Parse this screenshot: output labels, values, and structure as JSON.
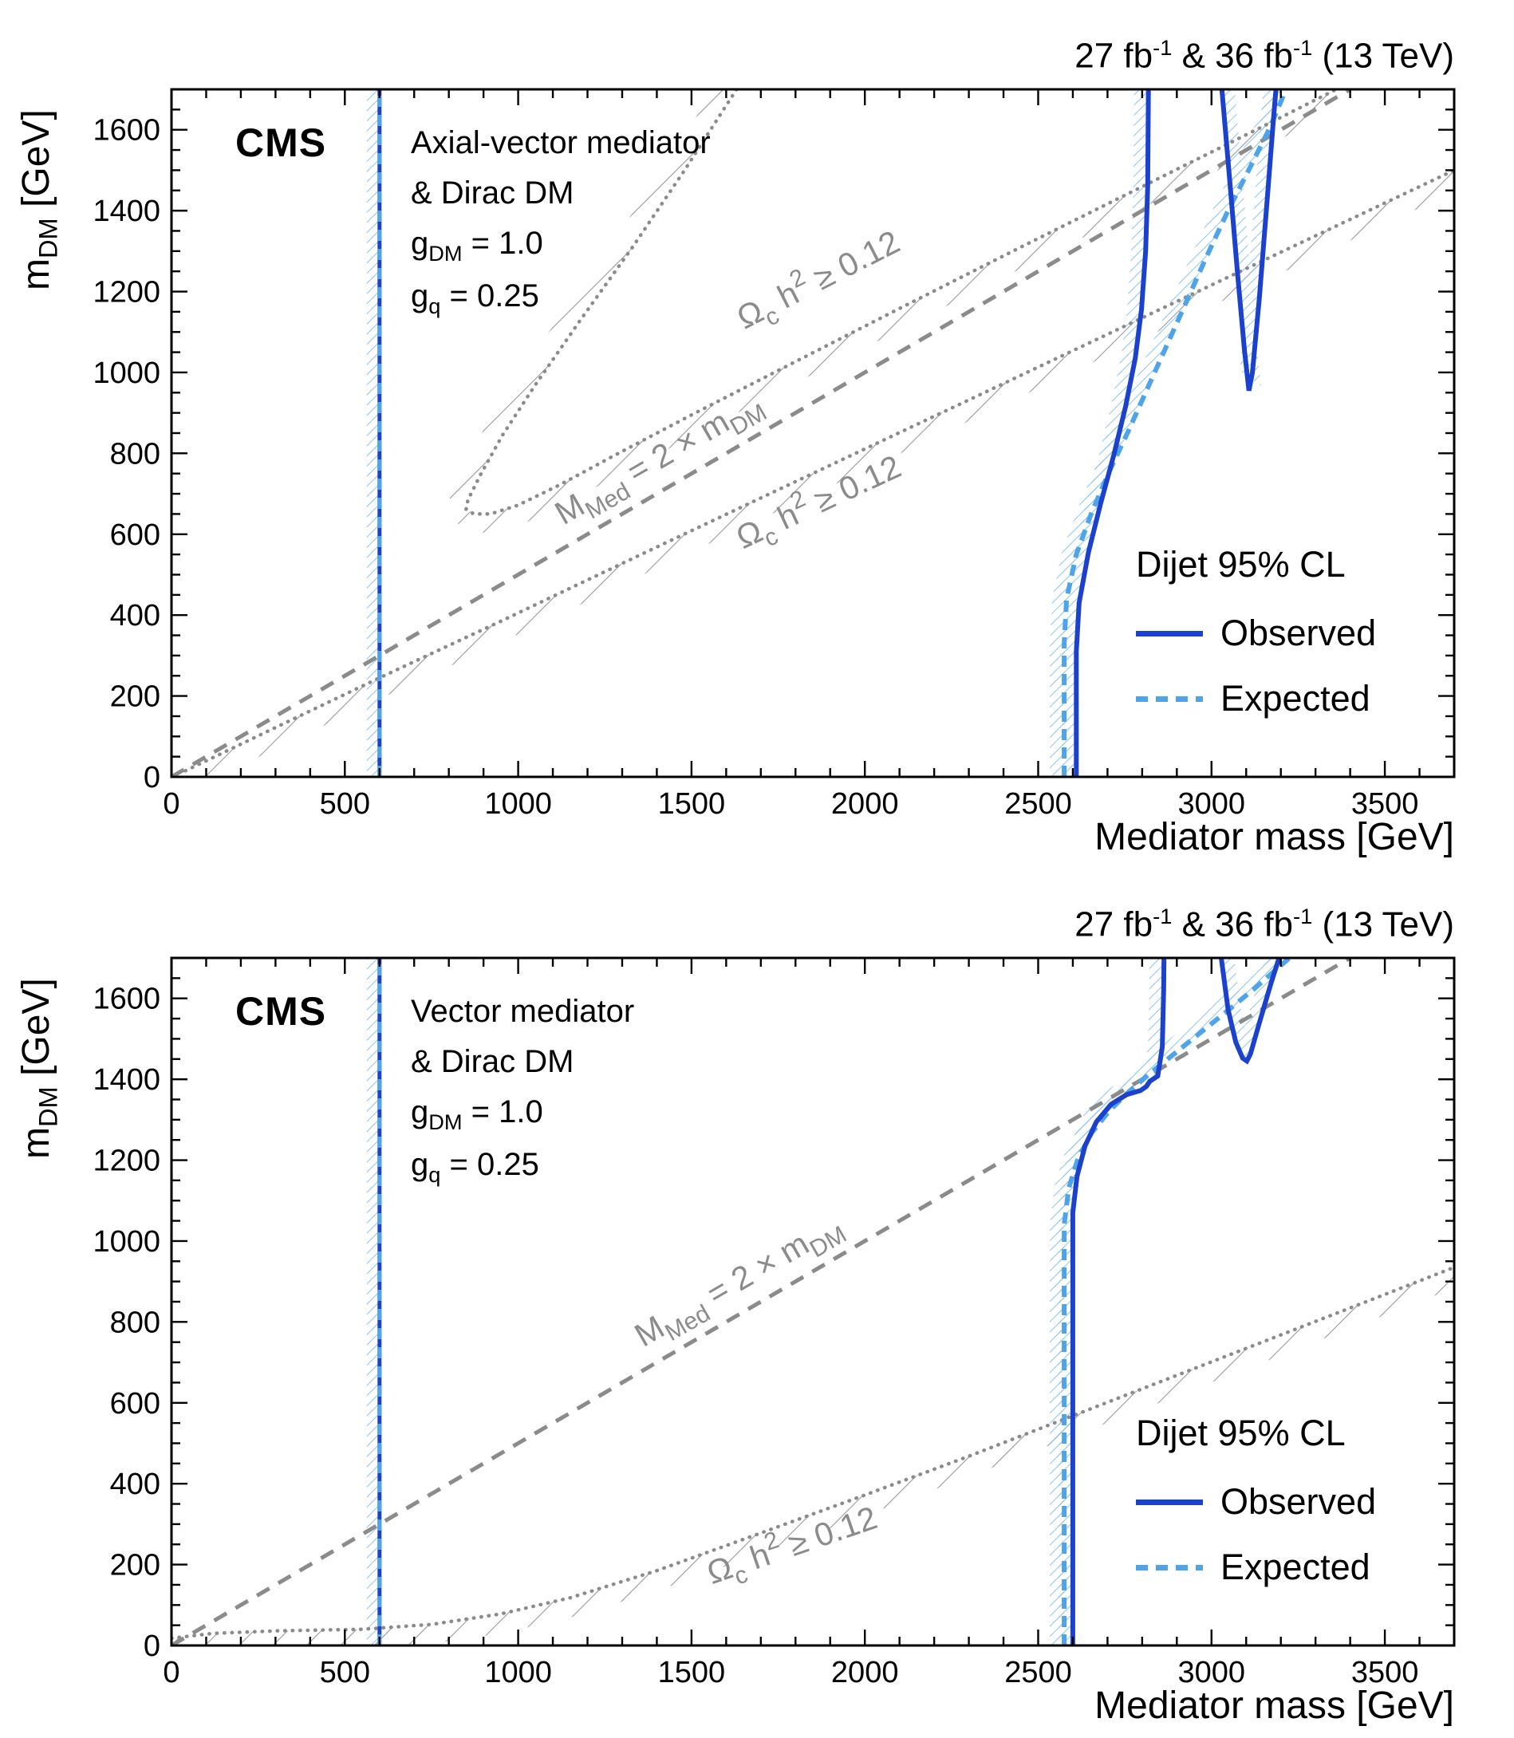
{
  "common": {
    "cms_label": "CMS",
    "lumi_label": [
      {
        "t": "27 fb"
      },
      {
        "t": "-1",
        "s": "sup"
      },
      {
        "t": " & 36 fb"
      },
      {
        "t": "-1",
        "s": "sup"
      },
      {
        "t": " (13 TeV)"
      }
    ],
    "colors": {
      "observed": "#1c41cb",
      "expected": "#4fa3e8",
      "hatch_blue": "#7cc0ef",
      "gray": "#8b8b8b",
      "hatch_gray": "#9a9a9a",
      "frame": "#000000"
    }
  },
  "chart_data": [
    {
      "type": "line",
      "title": "Dijet 95% CL exclusion, axial-vector mediator",
      "model_lines": [
        "Axial-vector mediator",
        "& Dirac DM"
      ],
      "couplings": [
        [
          {
            "t": "g"
          },
          {
            "t": "DM",
            "s": "sub"
          },
          {
            "t": " = 1.0"
          }
        ],
        [
          {
            "t": "g"
          },
          {
            "t": "q",
            "s": "sub"
          },
          {
            "t": " = 0.25"
          }
        ]
      ],
      "legend": {
        "title": "Dijet 95% CL",
        "entries": [
          "Observed",
          "Expected"
        ],
        "position": "right-center"
      },
      "xlabel": "Mediator mass [GeV]",
      "ylabel": "m_DM [GeV]",
      "ylabel_rich": [
        {
          "t": "m"
        },
        {
          "t": "DM",
          "s": "sub"
        },
        {
          "t": " [GeV]"
        }
      ],
      "xlim": [
        0,
        3700
      ],
      "ylim": [
        0,
        1700
      ],
      "xticks": {
        "major": 500,
        "minor": 100,
        "labels": [
          0,
          500,
          1000,
          1500,
          2000,
          2500,
          3000,
          3500
        ]
      },
      "yticks": {
        "major": 200,
        "minor": 50,
        "labels": [
          0,
          200,
          400,
          600,
          800,
          1000,
          1200,
          1400,
          1600
        ]
      },
      "grid": false,
      "series": [
        {
          "name": "mmed-equals-2mdm-line",
          "color": "#8b8b8b",
          "width": 5,
          "dash": "18 13",
          "points": [
            [
              0,
              0
            ],
            [
              3400,
              1700
            ]
          ]
        },
        {
          "name": "relic-density-contour-upper",
          "color": "#8b8b8b",
          "width": 4.5,
          "dot": true,
          "hatch": {
            "side": "right",
            "w": 24,
            "pattern": "gray"
          },
          "points": [
            [
              1630,
              1700
            ],
            [
              1480,
              1500
            ],
            [
              1330,
              1310
            ],
            [
              1180,
              1130
            ],
            [
              1050,
              970
            ],
            [
              955,
              845
            ],
            [
              890,
              745
            ],
            [
              855,
              685
            ],
            [
              850,
              662
            ],
            [
              872,
              650
            ],
            [
              920,
              650
            ],
            [
              1000,
              672
            ],
            [
              1120,
              722
            ],
            [
              1280,
              796
            ],
            [
              1500,
              895
            ],
            [
              1780,
              1018
            ],
            [
              2100,
              1158
            ],
            [
              2450,
              1310
            ],
            [
              2820,
              1468
            ],
            [
              3180,
              1622
            ],
            [
              3360,
              1700
            ]
          ]
        },
        {
          "name": "relic-density-contour-lower",
          "color": "#8b8b8b",
          "width": 4.5,
          "dot": true,
          "hatch": {
            "side": "right",
            "w": 24,
            "pattern": "gray"
          },
          "points": [
            [
              40,
              15
            ],
            [
              300,
              122
            ],
            [
              600,
              245
            ],
            [
              950,
              385
            ],
            [
              1350,
              548
            ],
            [
              1800,
              730
            ],
            [
              2300,
              932
            ],
            [
              2800,
              1135
            ],
            [
              3300,
              1338
            ],
            [
              3700,
              1500
            ]
          ]
        },
        {
          "name": "boosted-dijet-limit-observed",
          "color": "#1c41cb",
          "width": 5,
          "hatch": {
            "side": "left",
            "w": 16,
            "pattern": "blue"
          },
          "points": [
            [
              600,
              0
            ],
            [
              600,
              1700
            ]
          ]
        },
        {
          "name": "boosted-dijet-limit-expected",
          "color": "#4fa3e8",
          "width": 5,
          "dash": "14 10",
          "points": [
            [
              600,
              0
            ],
            [
              600,
              1700
            ]
          ]
        },
        {
          "name": "expected-limit",
          "color": "#4fa3e8",
          "width": 6,
          "dash": "14 9",
          "hatch": {
            "side": "left",
            "w": 18,
            "pattern": "blue"
          },
          "points": [
            [
              2575,
              0
            ],
            [
              2575,
              330
            ],
            [
              2582,
              440
            ],
            [
              2610,
              550
            ],
            [
              2655,
              655
            ],
            [
              2705,
              755
            ],
            [
              2760,
              855
            ],
            [
              2815,
              960
            ],
            [
              2870,
              1065
            ],
            [
              2925,
              1170
            ],
            [
              2985,
              1285
            ],
            [
              3045,
              1395
            ],
            [
              3110,
              1505
            ],
            [
              3170,
              1608
            ],
            [
              3215,
              1700
            ]
          ]
        },
        {
          "name": "observed-limit",
          "color": "#1c41cb",
          "width": 6,
          "hatch": {
            "side": "left",
            "w": 18,
            "pattern": "blue"
          },
          "points": [
            [
              2610,
              0
            ],
            [
              2610,
              310
            ],
            [
              2618,
              430
            ],
            [
              2645,
              555
            ],
            [
              2680,
              675
            ],
            [
              2718,
              795
            ],
            [
              2752,
              915
            ],
            [
              2780,
              1035
            ],
            [
              2798,
              1155
            ],
            [
              2810,
              1300
            ],
            [
              2816,
              1460
            ],
            [
              2818,
              1700
            ]
          ]
        },
        {
          "name": "observed-limit-notch",
          "color": "#1c41cb",
          "width": 6,
          "hatch": {
            "side": "left",
            "w": 16,
            "pattern": "blue"
          },
          "points": [
            [
              3030,
              1700
            ],
            [
              3052,
              1480
            ],
            [
              3075,
              1245
            ],
            [
              3095,
              1055
            ],
            [
              3108,
              955
            ],
            [
              3118,
              1000
            ],
            [
              3138,
              1185
            ],
            [
              3160,
              1420
            ],
            [
              3180,
              1640
            ],
            [
              3186,
              1700
            ]
          ]
        }
      ],
      "curve_labels": [
        {
          "parts": [
            {
              "t": "Ω"
            },
            {
              "t": "c",
              "s": "sub"
            },
            {
              "t": " h"
            },
            {
              "t": "2",
              "s": "sup"
            },
            {
              "t": " ≥ 0.12"
            }
          ],
          "x": 1880,
          "y": 1205,
          "rot": -27,
          "size": 41,
          "color": "#8b8b8b"
        },
        {
          "parts": [
            {
              "t": "M"
            },
            {
              "t": "Med",
              "s": "sub"
            },
            {
              "t": " = 2 × m"
            },
            {
              "t": "DM",
              "s": "sub"
            }
          ],
          "x": 1420,
          "y": 765,
          "rot": -30,
          "size": 41,
          "color": "#8b8b8b"
        },
        {
          "parts": [
            {
              "t": "Ω"
            },
            {
              "t": "c",
              "s": "sub"
            },
            {
              "t": " h"
            },
            {
              "t": "2",
              "s": "sup"
            },
            {
              "t": " ≥ 0.12"
            }
          ],
          "x": 1880,
          "y": 655,
          "rot": -25,
          "size": 41,
          "color": "#8b8b8b"
        }
      ]
    },
    {
      "type": "line",
      "title": "Dijet 95% CL exclusion, vector mediator",
      "model_lines": [
        "Vector mediator",
        "& Dirac DM"
      ],
      "couplings": [
        [
          {
            "t": "g"
          },
          {
            "t": "DM",
            "s": "sub"
          },
          {
            "t": " = 1.0"
          }
        ],
        [
          {
            "t": "g"
          },
          {
            "t": "q",
            "s": "sub"
          },
          {
            "t": " = 0.25"
          }
        ]
      ],
      "legend": {
        "title": "Dijet 95% CL",
        "entries": [
          "Observed",
          "Expected"
        ],
        "position": "right-center"
      },
      "xlabel": "Mediator mass [GeV]",
      "ylabel": "m_DM [GeV]",
      "ylabel_rich": [
        {
          "t": "m"
        },
        {
          "t": "DM",
          "s": "sub"
        },
        {
          "t": " [GeV]"
        }
      ],
      "xlim": [
        0,
        3700
      ],
      "ylim": [
        0,
        1700
      ],
      "xticks": {
        "major": 500,
        "minor": 100,
        "labels": [
          0,
          500,
          1000,
          1500,
          2000,
          2500,
          3000,
          3500
        ]
      },
      "yticks": {
        "major": 200,
        "minor": 50,
        "labels": [
          0,
          200,
          400,
          600,
          800,
          1000,
          1200,
          1400,
          1600
        ]
      },
      "grid": false,
      "series": [
        {
          "name": "mmed-equals-2mdm-line",
          "color": "#8b8b8b",
          "width": 5,
          "dash": "18 13",
          "points": [
            [
              0,
              0
            ],
            [
              3400,
              1700
            ]
          ]
        },
        {
          "name": "relic-density-contour",
          "color": "#8b8b8b",
          "width": 4.5,
          "dot": true,
          "hatch": {
            "side": "right",
            "w": 24,
            "pattern": "gray"
          },
          "points": [
            [
              0,
              18
            ],
            [
              120,
              30
            ],
            [
              300,
              36
            ],
            [
              550,
              40
            ],
            [
              750,
              52
            ],
            [
              950,
              78
            ],
            [
              1150,
              118
            ],
            [
              1400,
              185
            ],
            [
              1700,
              278
            ],
            [
              2000,
              372
            ],
            [
              2300,
              468
            ],
            [
              2600,
              568
            ],
            [
              2900,
              668
            ],
            [
              3200,
              768
            ],
            [
              3500,
              868
            ],
            [
              3700,
              935
            ]
          ]
        },
        {
          "name": "boosted-dijet-limit-observed",
          "color": "#1c41cb",
          "width": 5,
          "hatch": {
            "side": "left",
            "w": 16,
            "pattern": "blue"
          },
          "points": [
            [
              600,
              0
            ],
            [
              600,
              1700
            ]
          ]
        },
        {
          "name": "boosted-dijet-limit-expected",
          "color": "#4fa3e8",
          "width": 5,
          "dash": "14 10",
          "points": [
            [
              600,
              0
            ],
            [
              600,
              1700
            ]
          ]
        },
        {
          "name": "expected-limit",
          "color": "#4fa3e8",
          "width": 6,
          "dash": "14 9",
          "hatch": {
            "side": "left",
            "w": 18,
            "pattern": "blue"
          },
          "points": [
            [
              2575,
              0
            ],
            [
              2575,
              1040
            ],
            [
              2588,
              1130
            ],
            [
              2615,
              1205
            ],
            [
              2655,
              1268
            ],
            [
              2705,
              1322
            ],
            [
              2765,
              1372
            ],
            [
              2830,
              1420
            ],
            [
              2900,
              1468
            ],
            [
              2975,
              1520
            ],
            [
              3050,
              1572
            ],
            [
              3125,
              1625
            ],
            [
              3195,
              1678
            ],
            [
              3225,
              1700
            ]
          ]
        },
        {
          "name": "observed-limit",
          "color": "#1c41cb",
          "width": 6,
          "hatch": {
            "side": "left",
            "w": 18,
            "pattern": "blue"
          },
          "points": [
            [
              2600,
              0
            ],
            [
              2600,
              1070
            ],
            [
              2612,
              1160
            ],
            [
              2635,
              1235
            ],
            [
              2668,
              1295
            ],
            [
              2710,
              1338
            ],
            [
              2755,
              1362
            ],
            [
              2795,
              1372
            ],
            [
              2812,
              1382
            ],
            [
              2822,
              1395
            ],
            [
              2845,
              1408
            ],
            [
              2858,
              1480
            ],
            [
              2862,
              1620
            ],
            [
              2863,
              1700
            ]
          ]
        },
        {
          "name": "observed-limit-notch",
          "color": "#1c41cb",
          "width": 6,
          "hatch": {
            "side": "left",
            "w": 16,
            "pattern": "blue"
          },
          "points": [
            [
              3028,
              1700
            ],
            [
              3048,
              1572
            ],
            [
              3070,
              1492
            ],
            [
              3090,
              1452
            ],
            [
              3102,
              1445
            ],
            [
              3112,
              1462
            ],
            [
              3140,
              1545
            ],
            [
              3172,
              1638
            ],
            [
              3195,
              1700
            ]
          ]
        }
      ],
      "curve_labels": [
        {
          "parts": [
            {
              "t": "M"
            },
            {
              "t": "Med",
              "s": "sub"
            },
            {
              "t": " = 2 × m"
            },
            {
              "t": "DM",
              "s": "sub"
            }
          ],
          "x": 1650,
          "y": 880,
          "rot": -30,
          "size": 41,
          "color": "#8b8b8b"
        },
        {
          "parts": [
            {
              "t": "Ω"
            },
            {
              "t": "c",
              "s": "sub"
            },
            {
              "t": " h"
            },
            {
              "t": "2",
              "s": "sup"
            },
            {
              "t": " ≥ 0.12"
            }
          ],
          "x": 1800,
          "y": 222,
          "rot": -19,
          "size": 41,
          "color": "#8b8b8b"
        }
      ]
    }
  ]
}
